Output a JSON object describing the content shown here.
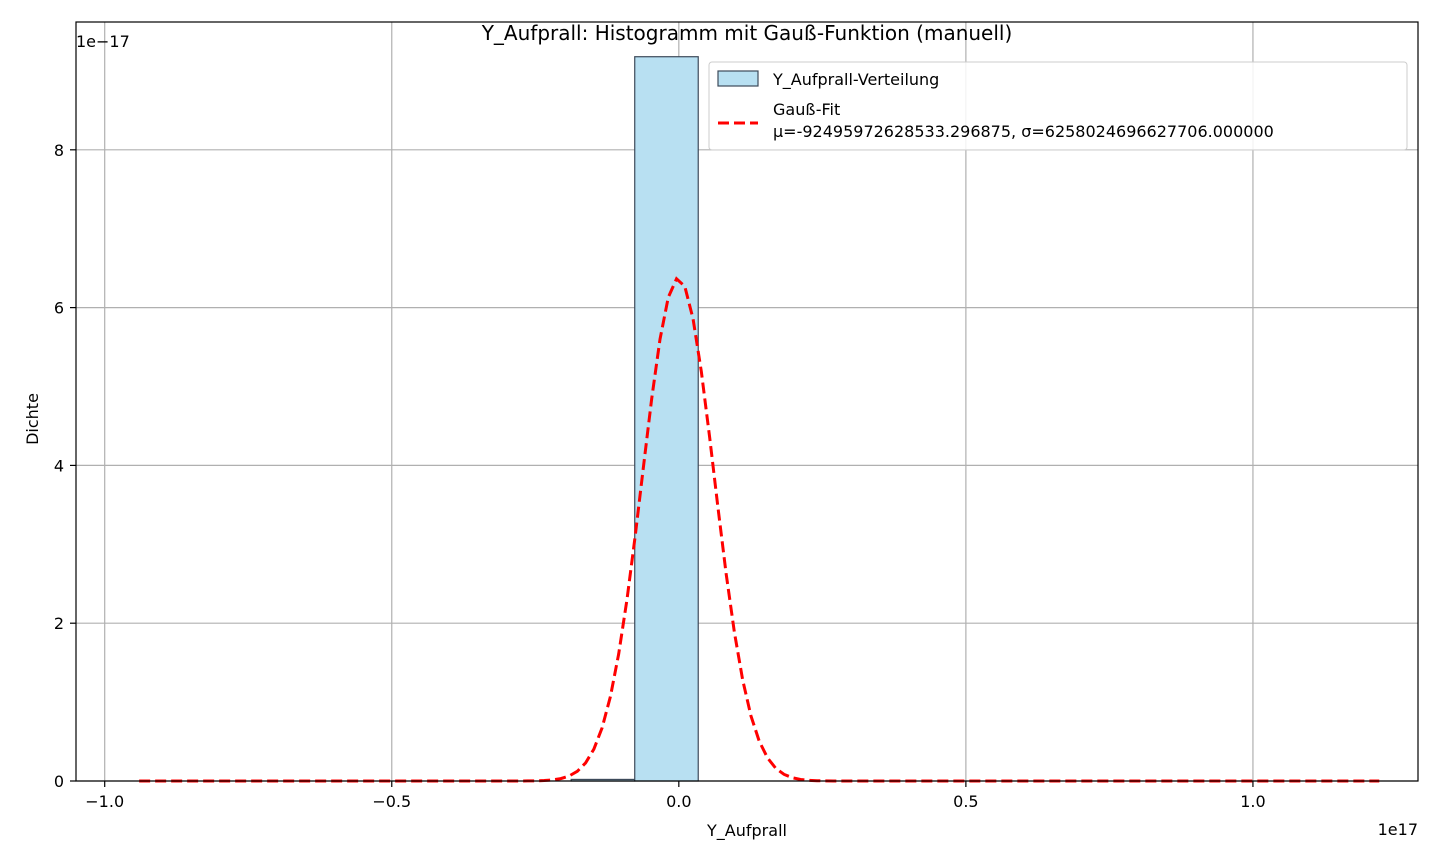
{
  "chart_data": {
    "type": "bar",
    "title": "Y_Aufprall: Histogramm mit Gauß-Funktion (manuell)",
    "xlabel": "Y_Aufprall",
    "ylabel": "Dichte",
    "x_offset_label": "1e17",
    "y_offset_label": "1e−17",
    "x_scale": 1e+17,
    "y_scale": 1e-17,
    "xlim": [
      -1.05,
      1.2875
    ],
    "ylim": [
      0,
      9.62
    ],
    "xticks": [
      -1.0,
      -0.5,
      0.0,
      0.5,
      1.0
    ],
    "xtick_labels": [
      "−1.0",
      "−0.5",
      "0.0",
      "0.5",
      "1.0"
    ],
    "yticks": [
      0,
      2,
      4,
      6,
      8
    ],
    "ytick_labels": [
      "0",
      "2",
      "4",
      "6",
      "8"
    ],
    "grid": true,
    "legend_position": "upper-right",
    "histogram": {
      "name": "Y_Aufprall-Verteilung",
      "bins": [
        {
          "x0": -0.1875,
          "x1": -0.0768,
          "value": 0.02
        },
        {
          "x0": -0.0768,
          "x1": 0.0338,
          "value": 9.18
        },
        {
          "x0": 0.0338,
          "x1": 0.1444,
          "value": 0.0
        }
      ],
      "fill": "#b8e0f2",
      "stroke": "#3c4a5a"
    },
    "gauss_fit": {
      "name": "Gauß-Fit",
      "label_line2": "μ=-92495972628533.296875, σ=6258024696627706.000000",
      "mu": -0.000925,
      "sigma": 0.0626,
      "x_range": [
        -0.94,
        1.22
      ],
      "color": "#ff0000"
    }
  }
}
